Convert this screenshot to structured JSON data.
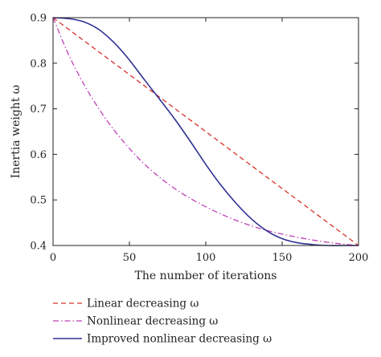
{
  "chart_data": {
    "type": "line",
    "xlabel": "The number of iterations",
    "ylabel": "Inertia weight ω",
    "xlim": [
      0,
      200
    ],
    "ylim": [
      0.4,
      0.9
    ],
    "x_ticks": [
      0,
      50,
      100,
      150,
      200
    ],
    "x_tick_labels": [
      "0",
      "50",
      "100",
      "150",
      "200"
    ],
    "y_ticks": [
      0.4,
      0.5,
      0.6,
      0.7,
      0.8,
      0.9
    ],
    "y_tick_labels": [
      "0.4",
      "0.5",
      "0.6",
      "0.7",
      "0.8",
      "0.9"
    ],
    "grid": false,
    "legend_position": "bottom",
    "x": [
      0,
      10,
      20,
      30,
      40,
      50,
      60,
      70,
      80,
      90,
      100,
      110,
      120,
      130,
      140,
      150,
      160,
      170,
      180,
      190,
      200
    ],
    "series": [
      {
        "name": "Linear decreasing ω",
        "style": "dashed",
        "color": "#d9302b",
        "values": [
          0.9,
          0.875,
          0.85,
          0.825,
          0.8,
          0.775,
          0.75,
          0.725,
          0.7,
          0.675,
          0.65,
          0.625,
          0.6,
          0.575,
          0.55,
          0.525,
          0.5,
          0.475,
          0.45,
          0.425,
          0.4
        ]
      },
      {
        "name": "Nonlinear decreasing ω",
        "style": "dash-dot",
        "color": "#c040b8",
        "values": [
          0.9,
          0.82,
          0.755,
          0.7,
          0.653,
          0.613,
          0.578,
          0.549,
          0.524,
          0.503,
          0.485,
          0.469,
          0.455,
          0.443,
          0.433,
          0.425,
          0.418,
          0.412,
          0.407,
          0.403,
          0.4
        ]
      },
      {
        "name": "Improved nonlinear decreasing ω",
        "style": "solid",
        "color": "#2e3192",
        "values": [
          0.9,
          0.898,
          0.891,
          0.874,
          0.845,
          0.807,
          0.763,
          0.72,
          0.676,
          0.628,
          0.578,
          0.532,
          0.492,
          0.458,
          0.432,
          0.415,
          0.406,
          0.402,
          0.4,
          0.4,
          0.4
        ]
      }
    ]
  }
}
